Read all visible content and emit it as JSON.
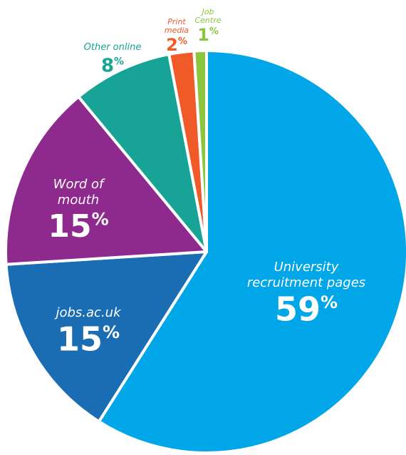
{
  "chart_data": {
    "type": "pie",
    "title": "",
    "slices": [
      {
        "name": "University recruitment pages",
        "label_lines": [
          "University",
          "recruitment pages"
        ],
        "value": 59,
        "value_text": "59",
        "unit": "%",
        "color": "#00A6E8",
        "label_color": "#ffffff"
      },
      {
        "name": "jobs.ac.uk",
        "label_lines": [
          "jobs.ac.uk"
        ],
        "value": 15,
        "value_text": "15",
        "unit": "%",
        "color": "#1B6DB3",
        "label_color": "#ffffff"
      },
      {
        "name": "Word of mouth",
        "label_lines": [
          "Word of",
          "mouth"
        ],
        "value": 15,
        "value_text": "15",
        "unit": "%",
        "color": "#8E2A8E",
        "label_color": "#ffffff"
      },
      {
        "name": "Other online",
        "label_lines": [
          "Other online"
        ],
        "value": 8,
        "value_text": "8",
        "unit": "%",
        "color": "#17A396",
        "label_color": "#17A396"
      },
      {
        "name": "Print media",
        "label_lines": [
          "Print",
          "media"
        ],
        "value": 2,
        "value_text": "2",
        "unit": "%",
        "color": "#EF5A28",
        "label_color": "#EF5A28"
      },
      {
        "name": "Job Centre",
        "label_lines": [
          "Job",
          "Centre"
        ],
        "value": 1,
        "value_text": "1",
        "unit": "%",
        "color": "#8CC63F",
        "label_color": "#8CC63F"
      }
    ]
  }
}
